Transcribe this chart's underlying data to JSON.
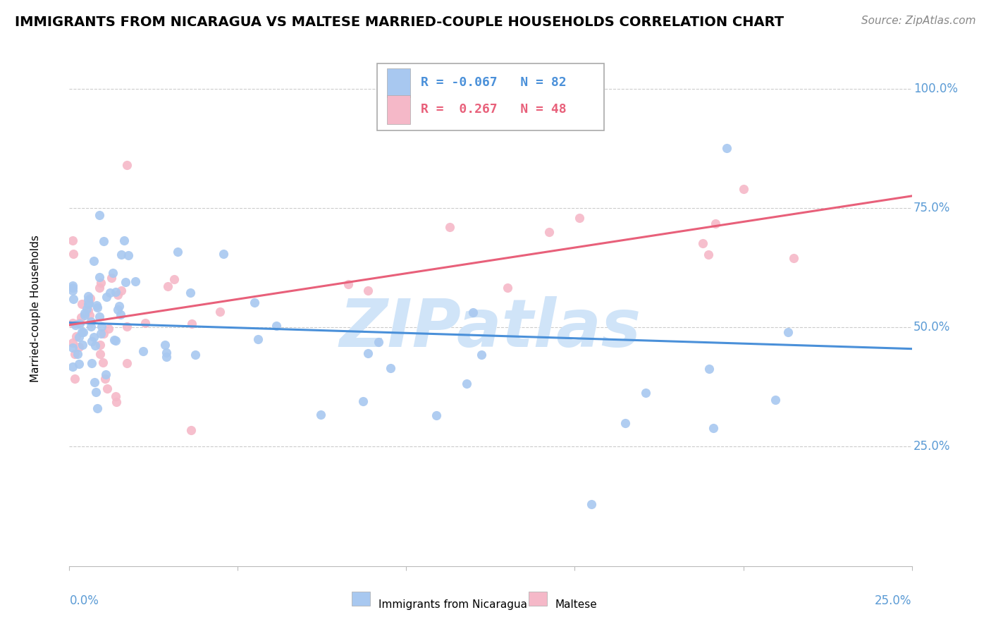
{
  "title": "IMMIGRANTS FROM NICARAGUA VS MALTESE MARRIED-COUPLE HOUSEHOLDS CORRELATION CHART",
  "source": "Source: ZipAtlas.com",
  "ylabel": "Married-couple Households",
  "xmin": 0.0,
  "xmax": 0.25,
  "ymin": 0.0,
  "ymax": 1.08,
  "blue_color": "#a8c8f0",
  "pink_color": "#f5b8c8",
  "line_blue": "#4a90d9",
  "line_pink": "#e8607a",
  "watermark_color": "#d0e4f8",
  "grid_color": "#cccccc",
  "tick_color": "#5b9bd5",
  "title_fontsize": 14,
  "axis_label_fontsize": 11,
  "tick_fontsize": 12,
  "legend_fontsize": 13,
  "source_fontsize": 11,
  "blue_line_y0": 0.51,
  "blue_line_y1": 0.455,
  "pink_line_y0": 0.505,
  "pink_line_y1": 0.775,
  "blue_N": 82,
  "pink_N": 48,
  "blue_R": -0.067,
  "pink_R": 0.267
}
